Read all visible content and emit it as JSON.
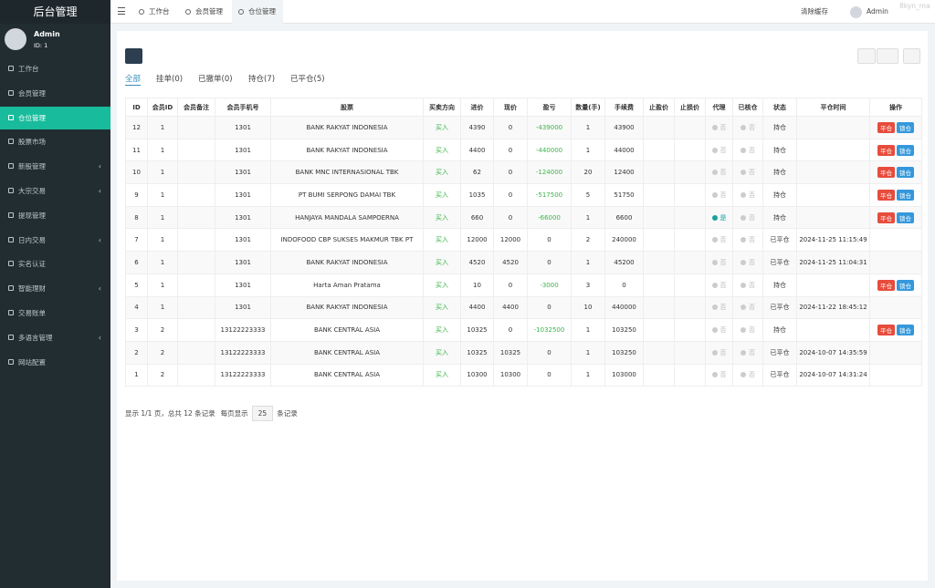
{
  "sidebar": {
    "title": "后台管理",
    "user": {
      "name": "Admin",
      "id": "ID: 1"
    },
    "menu": [
      {
        "label": "工作台"
      },
      {
        "label": "会员管理"
      },
      {
        "label": "仓位管理",
        "active": true
      },
      {
        "label": "股票市场"
      },
      {
        "label": "新股管理",
        "has_submenu": true
      },
      {
        "label": "大宗交易",
        "has_submenu": true
      },
      {
        "label": "提现管理"
      },
      {
        "label": "日内交易",
        "has_submenu": true
      },
      {
        "label": "实名认证"
      },
      {
        "label": "智能理财",
        "has_submenu": true
      },
      {
        "label": "交易账单"
      },
      {
        "label": "多语言管理",
        "has_submenu": true
      },
      {
        "label": "网站配置"
      }
    ]
  },
  "topbar": {
    "tabs": [
      {
        "label": "工作台"
      },
      {
        "label": "会员管理"
      },
      {
        "label": "仓位管理",
        "active": true
      }
    ],
    "clear_cache": "清除缓存",
    "user": "Admin",
    "watermark": "8kyn_ma"
  },
  "filters": [
    {
      "label": "全部",
      "active": true
    },
    {
      "label": "挂单(0)"
    },
    {
      "label": "已撤单(0)"
    },
    {
      "label": "持仓(7)"
    },
    {
      "label": "已平仓(5)"
    }
  ],
  "table": {
    "columns": [
      "ID",
      "会员ID",
      "会员备注",
      "会员手机号",
      "股票",
      "买卖方向",
      "进价",
      "现价",
      "盈亏",
      "数量(手)",
      "手续费",
      "止盈价",
      "止损价",
      "代理",
      "已核仓",
      "状态",
      "平仓时间",
      "操作"
    ],
    "rows": [
      {
        "id": 12,
        "member_id": 1,
        "phone": "1301",
        "stock": "BANK RAKYAT INDONESIA",
        "direction": "买入",
        "buy_price": 4390,
        "current_price": 0,
        "pnl": -439000,
        "lots": 1,
        "fee": 43900,
        "agent": "否",
        "checked": "否",
        "status": "持仓",
        "actions": [
          "平仓",
          "锁仓"
        ]
      },
      {
        "id": 11,
        "member_id": 1,
        "phone": "1301",
        "stock": "BANK RAKYAT INDONESIA",
        "direction": "买入",
        "buy_price": 4400,
        "current_price": 0,
        "pnl": -440000,
        "lots": 1,
        "fee": 44000,
        "agent": "否",
        "checked": "否",
        "status": "持仓",
        "actions": [
          "平仓",
          "锁仓"
        ]
      },
      {
        "id": 10,
        "member_id": 1,
        "phone": "1301",
        "stock": "BANK MNC INTERNASIONAL TBK",
        "direction": "买入",
        "buy_price": 62,
        "current_price": 0,
        "pnl": -124000,
        "lots": 20,
        "fee": 12400,
        "agent": "否",
        "checked": "否",
        "status": "持仓",
        "actions": [
          "平仓",
          "锁仓"
        ]
      },
      {
        "id": 9,
        "member_id": 1,
        "phone": "1301",
        "stock": "PT BUMI SERPONG DAMAI TBK",
        "direction": "买入",
        "buy_price": 1035,
        "current_price": 0,
        "pnl": -517500,
        "lots": 5,
        "fee": 51750,
        "agent": "否",
        "checked": "否",
        "status": "持仓",
        "actions": [
          "平仓",
          "锁仓"
        ]
      },
      {
        "id": 8,
        "member_id": 1,
        "phone": "1301",
        "stock": "HANJAYA MANDALA SAMPOERNA",
        "direction": "买入",
        "buy_price": 660,
        "current_price": 0,
        "pnl": -66000,
        "lots": 1,
        "fee": 6600,
        "agent": "是",
        "checked": "否",
        "status": "持仓",
        "actions": [
          "平仓",
          "锁仓"
        ]
      },
      {
        "id": 7,
        "member_id": 1,
        "phone": "1301",
        "stock": "INDOFOOD CBP SUKSES MAKMUR TBK PT",
        "direction": "买入",
        "buy_price": 12000,
        "current_price": 12000,
        "pnl": 0,
        "lots": 2,
        "fee": 240000,
        "agent": "否",
        "checked": "否",
        "status": "已平仓",
        "close_time": "2024-11-25 11:15:49"
      },
      {
        "id": 6,
        "member_id": 1,
        "phone": "1301",
        "stock": "BANK RAKYAT INDONESIA",
        "direction": "买入",
        "buy_price": 4520,
        "current_price": 4520,
        "pnl": 0,
        "lots": 1,
        "fee": 45200,
        "agent": "否",
        "checked": "否",
        "status": "已平仓",
        "close_time": "2024-11-25 11:04:31"
      },
      {
        "id": 5,
        "member_id": 1,
        "phone": "1301",
        "stock": "Harta Aman Pratama",
        "direction": "买入",
        "buy_price": 10,
        "current_price": 0,
        "pnl": -3000,
        "lots": 3,
        "fee": 0,
        "agent": "否",
        "checked": "否",
        "status": "持仓",
        "actions": [
          "平仓",
          "锁仓"
        ]
      },
      {
        "id": 4,
        "member_id": 1,
        "phone": "1301",
        "stock": "BANK RAKYAT INDONESIA",
        "direction": "买入",
        "buy_price": 4400,
        "current_price": 4400,
        "pnl": 0,
        "lots": 10,
        "fee": 440000,
        "agent": "否",
        "checked": "否",
        "status": "已平仓",
        "close_time": "2024-11-22 18:45:12"
      },
      {
        "id": 3,
        "member_id": 2,
        "phone": "13122223333",
        "stock": "BANK CENTRAL ASIA",
        "direction": "买入",
        "buy_price": 10325,
        "current_price": 0,
        "pnl": -1032500,
        "lots": 1,
        "fee": 103250,
        "agent": "否",
        "checked": "否",
        "status": "持仓",
        "actions": [
          "平仓",
          "锁仓"
        ]
      },
      {
        "id": 2,
        "member_id": 2,
        "phone": "13122223333",
        "stock": "BANK CENTRAL ASIA",
        "direction": "买入",
        "buy_price": 10325,
        "current_price": 10325,
        "pnl": 0,
        "lots": 1,
        "fee": 103250,
        "agent": "否",
        "checked": "否",
        "status": "已平仓",
        "close_time": "2024-10-07 14:35:59"
      },
      {
        "id": 1,
        "member_id": 2,
        "phone": "13122223333",
        "stock": "BANK CENTRAL ASIA",
        "direction": "买入",
        "buy_price": 10300,
        "current_price": 10300,
        "pnl": 0,
        "lots": 1,
        "fee": 103000,
        "agent": "否",
        "checked": "否",
        "status": "已平仓",
        "close_time": "2024-10-07 14:31:24"
      }
    ]
  },
  "pagination": {
    "info": "显示 1/1 页，总共 12 条记录",
    "per_page_label": "每页显示",
    "per_page": 25,
    "suffix": "条记录"
  }
}
